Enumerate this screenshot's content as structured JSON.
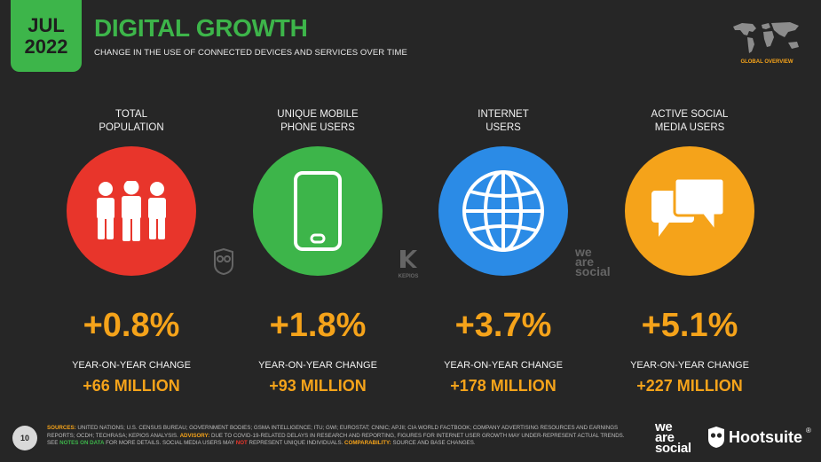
{
  "badge": {
    "month": "JUL",
    "year": "2022"
  },
  "header": {
    "title": "DIGITAL GROWTH",
    "subtitle": "CHANGE IN THE USE OF CONNECTED DEVICES AND SERVICES OVER TIME",
    "section_tag": "GLOBAL OVERVIEW"
  },
  "metrics": [
    {
      "label_line1": "TOTAL",
      "label_line2": "POPULATION",
      "icon": "people-icon",
      "color": "#e8352b",
      "pct": "+0.8%",
      "yoy_label": "YEAR-ON-YEAR CHANGE",
      "abs": "+66 MILLION"
    },
    {
      "label_line1": "UNIQUE MOBILE",
      "label_line2": "PHONE USERS",
      "icon": "mobile-phone-icon",
      "color": "#3db54a",
      "pct": "+1.8%",
      "yoy_label": "YEAR-ON-YEAR CHANGE",
      "abs": "+93 MILLION"
    },
    {
      "label_line1": "INTERNET",
      "label_line2": "USERS",
      "icon": "globe-icon",
      "color": "#2b8be6",
      "pct": "+3.7%",
      "yoy_label": "YEAR-ON-YEAR CHANGE",
      "abs": "+178 MILLION"
    },
    {
      "label_line1": "ACTIVE SOCIAL",
      "label_line2": "MEDIA USERS",
      "icon": "chat-bubbles-icon",
      "color": "#f5a31a",
      "pct": "+5.1%",
      "yoy_label": "YEAR-ON-YEAR CHANGE",
      "abs": "+227 MILLION"
    }
  ],
  "watermarks": {
    "kepios": "KEPIOS",
    "ws_line1": "we",
    "ws_line2": "are",
    "ws_line3": "social"
  },
  "footer": {
    "page_number": "10",
    "sources_label": "SOURCES:",
    "sources_text": " UNITED NATIONS; U.S. CENSUS BUREAU; GOVERNMENT BODIES; GSMA INTELLIGENCE; ITU; GWI; EUROSTAT; CNNIC; APJII; CIA WORLD FACTBOOK; COMPANY ADVERTISING RESOURCES AND EARNINGS REPORTS; OCDH; TECHRASA; KEPIOS ANALYSIS. ",
    "advisory_label": "ADVISORY:",
    "advisory_text": " DUE TO COVID-19-RELATED DELAYS IN RESEARCH AND REPORTING, FIGURES FOR INTERNET USER GROWTH MAY UNDER-REPRESENT ACTUAL TRENDS. SEE ",
    "notes_link": "NOTES ON DATA",
    "notes_text": " FOR MORE DETAILS. SOCIAL MEDIA USERS MAY ",
    "not_word": "NOT",
    "not_text": " REPRESENT UNIQUE INDIVIDUALS. ",
    "comparability_label": "COMPARABILITY:",
    "comparability_text": " SOURCE AND BASE CHANGES.",
    "brand1_line1": "we",
    "brand1_line2": "are",
    "brand1_line3": "social",
    "brand2": "Hootsuite",
    "brand2_mark": "®"
  }
}
